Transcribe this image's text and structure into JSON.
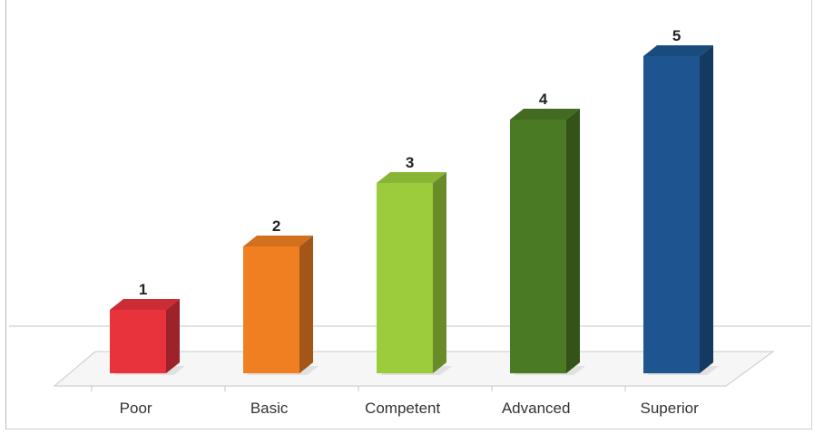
{
  "chart_data": {
    "type": "bar",
    "categories": [
      "Poor ",
      "Basic ",
      "Competent ",
      "Advanced ",
      "Superior "
    ],
    "values": [
      1,
      2,
      3,
      4,
      5
    ],
    "value_labels": [
      "1 ",
      "2 ",
      "3 ",
      "4 ",
      "5 "
    ],
    "colors": [
      "#e8323c",
      "#f07f22",
      "#9ccc3c",
      "#4b7a25",
      "#1e5590"
    ],
    "ylim": [
      0,
      5.2
    ],
    "three_d": true,
    "grid": false,
    "legend": "none"
  }
}
